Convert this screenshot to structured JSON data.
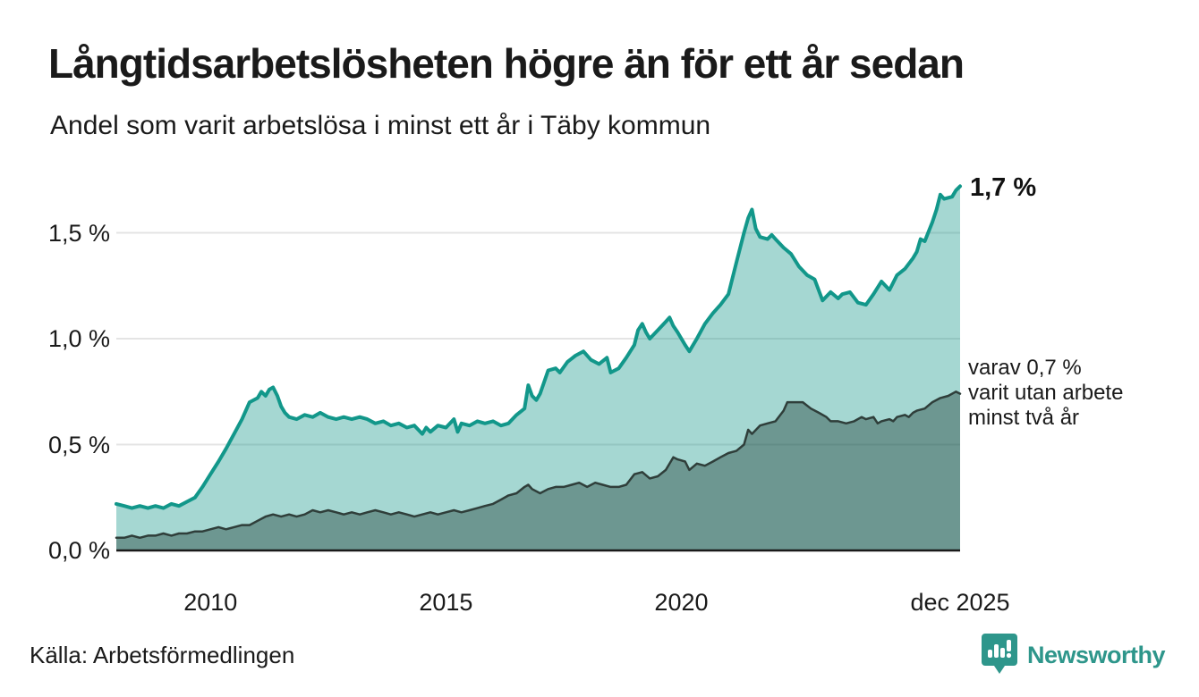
{
  "header": {
    "title": "Långtidsarbetslösheten högre än för ett år sedan",
    "subtitle": "Andel som varit arbetslösa i minst ett år i Täby kommun"
  },
  "annotations": {
    "latest_value": "1,7 %",
    "secondary_line1": "varav 0,7 %",
    "secondary_line2": "varit utan arbete",
    "secondary_line3": "minst två år"
  },
  "footer": {
    "source": "Källa: Arbetsförmedlingen",
    "brand": "Newsworthy"
  },
  "colors": {
    "text": "#1a1a1a",
    "gridline": "#e4e4e4",
    "axis": "#1a1a1a",
    "series1_line": "#12978a",
    "series1_fill": "rgba(18,151,138,0.38)",
    "series2_line": "#2f3e3a",
    "series2_fill": "rgba(31,61,54,0.42)",
    "brand_teal": "#2e968b"
  },
  "chart_data": {
    "type": "area",
    "title": "Långtidsarbetslösheten högre än för ett år sedan",
    "subtitle": "Andel som varit arbetslösa i minst ett år i Täby kommun",
    "unit": "%",
    "xlim": [
      2008.0,
      2025.92
    ],
    "ylim": [
      0,
      1.8
    ],
    "grid": true,
    "x_ticks": [
      {
        "t": 2010.0,
        "label": "2010"
      },
      {
        "t": 2015.0,
        "label": "2015"
      },
      {
        "t": 2020.0,
        "label": "2020"
      },
      {
        "t": 2025.92,
        "label": "dec 2025"
      }
    ],
    "y_ticks": [
      {
        "v": 0.0,
        "label": "0,0 %"
      },
      {
        "v": 0.5,
        "label": "0,5 %"
      },
      {
        "v": 1.0,
        "label": "1,0 %"
      },
      {
        "v": 1.5,
        "label": "1,5 %"
      }
    ],
    "series": [
      {
        "name": "Arbetslösa minst ett år",
        "end_label": "1,7 %",
        "end_value": 1.72,
        "color": "#12978a",
        "fill": "rgba(18,151,138,0.38)",
        "stroke_width": 4,
        "points": [
          [
            2008.0,
            0.22
          ],
          [
            2008.17,
            0.21
          ],
          [
            2008.33,
            0.2
          ],
          [
            2008.5,
            0.21
          ],
          [
            2008.67,
            0.2
          ],
          [
            2008.83,
            0.21
          ],
          [
            2009.0,
            0.2
          ],
          [
            2009.17,
            0.22
          ],
          [
            2009.33,
            0.21
          ],
          [
            2009.5,
            0.23
          ],
          [
            2009.67,
            0.25
          ],
          [
            2009.83,
            0.3
          ],
          [
            2010.0,
            0.36
          ],
          [
            2010.17,
            0.42
          ],
          [
            2010.33,
            0.48
          ],
          [
            2010.5,
            0.55
          ],
          [
            2010.67,
            0.62
          ],
          [
            2010.83,
            0.7
          ],
          [
            2011.0,
            0.72
          ],
          [
            2011.08,
            0.75
          ],
          [
            2011.17,
            0.73
          ],
          [
            2011.25,
            0.76
          ],
          [
            2011.33,
            0.77
          ],
          [
            2011.42,
            0.73
          ],
          [
            2011.5,
            0.68
          ],
          [
            2011.58,
            0.65
          ],
          [
            2011.67,
            0.63
          ],
          [
            2011.83,
            0.62
          ],
          [
            2012.0,
            0.64
          ],
          [
            2012.17,
            0.63
          ],
          [
            2012.33,
            0.65
          ],
          [
            2012.5,
            0.63
          ],
          [
            2012.67,
            0.62
          ],
          [
            2012.83,
            0.63
          ],
          [
            2013.0,
            0.62
          ],
          [
            2013.17,
            0.63
          ],
          [
            2013.33,
            0.62
          ],
          [
            2013.5,
            0.6
          ],
          [
            2013.67,
            0.61
          ],
          [
            2013.83,
            0.59
          ],
          [
            2014.0,
            0.6
          ],
          [
            2014.17,
            0.58
          ],
          [
            2014.33,
            0.59
          ],
          [
            2014.5,
            0.55
          ],
          [
            2014.58,
            0.58
          ],
          [
            2014.67,
            0.56
          ],
          [
            2014.83,
            0.59
          ],
          [
            2015.0,
            0.58
          ],
          [
            2015.17,
            0.62
          ],
          [
            2015.25,
            0.56
          ],
          [
            2015.33,
            0.6
          ],
          [
            2015.5,
            0.59
          ],
          [
            2015.67,
            0.61
          ],
          [
            2015.83,
            0.6
          ],
          [
            2016.0,
            0.61
          ],
          [
            2016.17,
            0.59
          ],
          [
            2016.33,
            0.6
          ],
          [
            2016.5,
            0.64
          ],
          [
            2016.67,
            0.67
          ],
          [
            2016.75,
            0.78
          ],
          [
            2016.83,
            0.73
          ],
          [
            2016.92,
            0.71
          ],
          [
            2017.0,
            0.74
          ],
          [
            2017.17,
            0.85
          ],
          [
            2017.33,
            0.86
          ],
          [
            2017.42,
            0.84
          ],
          [
            2017.58,
            0.89
          ],
          [
            2017.75,
            0.92
          ],
          [
            2017.92,
            0.94
          ],
          [
            2018.08,
            0.9
          ],
          [
            2018.25,
            0.88
          ],
          [
            2018.42,
            0.91
          ],
          [
            2018.5,
            0.84
          ],
          [
            2018.67,
            0.86
          ],
          [
            2018.83,
            0.91
          ],
          [
            2019.0,
            0.97
          ],
          [
            2019.08,
            1.04
          ],
          [
            2019.17,
            1.07
          ],
          [
            2019.25,
            1.03
          ],
          [
            2019.33,
            1.0
          ],
          [
            2019.5,
            1.04
          ],
          [
            2019.67,
            1.08
          ],
          [
            2019.75,
            1.1
          ],
          [
            2019.83,
            1.06
          ],
          [
            2019.92,
            1.03
          ],
          [
            2020.08,
            0.97
          ],
          [
            2020.17,
            0.94
          ],
          [
            2020.33,
            1.0
          ],
          [
            2020.5,
            1.07
          ],
          [
            2020.67,
            1.12
          ],
          [
            2020.83,
            1.16
          ],
          [
            2021.0,
            1.21
          ],
          [
            2021.17,
            1.36
          ],
          [
            2021.33,
            1.5
          ],
          [
            2021.42,
            1.57
          ],
          [
            2021.5,
            1.61
          ],
          [
            2021.58,
            1.52
          ],
          [
            2021.67,
            1.48
          ],
          [
            2021.83,
            1.47
          ],
          [
            2021.92,
            1.49
          ],
          [
            2022.0,
            1.47
          ],
          [
            2022.17,
            1.43
          ],
          [
            2022.33,
            1.4
          ],
          [
            2022.5,
            1.34
          ],
          [
            2022.67,
            1.3
          ],
          [
            2022.83,
            1.28
          ],
          [
            2023.0,
            1.18
          ],
          [
            2023.17,
            1.22
          ],
          [
            2023.33,
            1.19
          ],
          [
            2023.42,
            1.21
          ],
          [
            2023.58,
            1.22
          ],
          [
            2023.75,
            1.17
          ],
          [
            2023.92,
            1.16
          ],
          [
            2024.08,
            1.21
          ],
          [
            2024.25,
            1.27
          ],
          [
            2024.42,
            1.23
          ],
          [
            2024.58,
            1.3
          ],
          [
            2024.75,
            1.33
          ],
          [
            2024.92,
            1.38
          ],
          [
            2025.0,
            1.41
          ],
          [
            2025.08,
            1.47
          ],
          [
            2025.17,
            1.46
          ],
          [
            2025.33,
            1.55
          ],
          [
            2025.42,
            1.61
          ],
          [
            2025.5,
            1.68
          ],
          [
            2025.58,
            1.66
          ],
          [
            2025.75,
            1.67
          ],
          [
            2025.83,
            1.7
          ],
          [
            2025.92,
            1.72
          ]
        ]
      },
      {
        "name": "varav utan arbete minst två år",
        "end_label": "varav 0,7 % varit utan arbete minst två år",
        "end_value": 0.74,
        "color": "#2f3e3a",
        "fill": "rgba(31,61,54,0.42)",
        "stroke_width": 2.5,
        "points": [
          [
            2008.0,
            0.06
          ],
          [
            2008.17,
            0.06
          ],
          [
            2008.33,
            0.07
          ],
          [
            2008.5,
            0.06
          ],
          [
            2008.67,
            0.07
          ],
          [
            2008.83,
            0.07
          ],
          [
            2009.0,
            0.08
          ],
          [
            2009.17,
            0.07
          ],
          [
            2009.33,
            0.08
          ],
          [
            2009.5,
            0.08
          ],
          [
            2009.67,
            0.09
          ],
          [
            2009.83,
            0.09
          ],
          [
            2010.0,
            0.1
          ],
          [
            2010.17,
            0.11
          ],
          [
            2010.33,
            0.1
          ],
          [
            2010.5,
            0.11
          ],
          [
            2010.67,
            0.12
          ],
          [
            2010.83,
            0.12
          ],
          [
            2011.0,
            0.14
          ],
          [
            2011.17,
            0.16
          ],
          [
            2011.33,
            0.17
          ],
          [
            2011.5,
            0.16
          ],
          [
            2011.67,
            0.17
          ],
          [
            2011.83,
            0.16
          ],
          [
            2012.0,
            0.17
          ],
          [
            2012.17,
            0.19
          ],
          [
            2012.33,
            0.18
          ],
          [
            2012.5,
            0.19
          ],
          [
            2012.67,
            0.18
          ],
          [
            2012.83,
            0.17
          ],
          [
            2013.0,
            0.18
          ],
          [
            2013.17,
            0.17
          ],
          [
            2013.33,
            0.18
          ],
          [
            2013.5,
            0.19
          ],
          [
            2013.67,
            0.18
          ],
          [
            2013.83,
            0.17
          ],
          [
            2014.0,
            0.18
          ],
          [
            2014.17,
            0.17
          ],
          [
            2014.33,
            0.16
          ],
          [
            2014.5,
            0.17
          ],
          [
            2014.67,
            0.18
          ],
          [
            2014.83,
            0.17
          ],
          [
            2015.0,
            0.18
          ],
          [
            2015.17,
            0.19
          ],
          [
            2015.33,
            0.18
          ],
          [
            2015.5,
            0.19
          ],
          [
            2015.67,
            0.2
          ],
          [
            2015.83,
            0.21
          ],
          [
            2016.0,
            0.22
          ],
          [
            2016.17,
            0.24
          ],
          [
            2016.33,
            0.26
          ],
          [
            2016.5,
            0.27
          ],
          [
            2016.67,
            0.3
          ],
          [
            2016.75,
            0.31
          ],
          [
            2016.83,
            0.29
          ],
          [
            2017.0,
            0.27
          ],
          [
            2017.17,
            0.29
          ],
          [
            2017.33,
            0.3
          ],
          [
            2017.5,
            0.3
          ],
          [
            2017.67,
            0.31
          ],
          [
            2017.83,
            0.32
          ],
          [
            2018.0,
            0.3
          ],
          [
            2018.17,
            0.32
          ],
          [
            2018.33,
            0.31
          ],
          [
            2018.5,
            0.3
          ],
          [
            2018.67,
            0.3
          ],
          [
            2018.83,
            0.31
          ],
          [
            2019.0,
            0.36
          ],
          [
            2019.17,
            0.37
          ],
          [
            2019.33,
            0.34
          ],
          [
            2019.5,
            0.35
          ],
          [
            2019.67,
            0.38
          ],
          [
            2019.83,
            0.44
          ],
          [
            2019.92,
            0.43
          ],
          [
            2020.08,
            0.42
          ],
          [
            2020.17,
            0.38
          ],
          [
            2020.33,
            0.41
          ],
          [
            2020.5,
            0.4
          ],
          [
            2020.67,
            0.42
          ],
          [
            2020.83,
            0.44
          ],
          [
            2021.0,
            0.46
          ],
          [
            2021.17,
            0.47
          ],
          [
            2021.33,
            0.5
          ],
          [
            2021.42,
            0.57
          ],
          [
            2021.5,
            0.55
          ],
          [
            2021.67,
            0.59
          ],
          [
            2021.83,
            0.6
          ],
          [
            2022.0,
            0.61
          ],
          [
            2022.17,
            0.66
          ],
          [
            2022.25,
            0.7
          ],
          [
            2022.42,
            0.7
          ],
          [
            2022.58,
            0.7
          ],
          [
            2022.75,
            0.67
          ],
          [
            2022.92,
            0.65
          ],
          [
            2023.08,
            0.63
          ],
          [
            2023.17,
            0.61
          ],
          [
            2023.33,
            0.61
          ],
          [
            2023.5,
            0.6
          ],
          [
            2023.67,
            0.61
          ],
          [
            2023.83,
            0.63
          ],
          [
            2023.92,
            0.62
          ],
          [
            2024.08,
            0.63
          ],
          [
            2024.17,
            0.6
          ],
          [
            2024.25,
            0.61
          ],
          [
            2024.42,
            0.62
          ],
          [
            2024.5,
            0.61
          ],
          [
            2024.58,
            0.63
          ],
          [
            2024.75,
            0.64
          ],
          [
            2024.83,
            0.63
          ],
          [
            2024.92,
            0.65
          ],
          [
            2025.0,
            0.66
          ],
          [
            2025.17,
            0.67
          ],
          [
            2025.33,
            0.7
          ],
          [
            2025.5,
            0.72
          ],
          [
            2025.67,
            0.73
          ],
          [
            2025.83,
            0.75
          ],
          [
            2025.92,
            0.74
          ]
        ]
      }
    ],
    "source": "Källa: Arbetsförmedlingen"
  }
}
